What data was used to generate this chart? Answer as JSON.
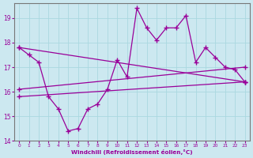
{
  "xlabel": "Windchill (Refroidissement éolien,°C)",
  "background_color": "#cce8f0",
  "line_color": "#990099",
  "xlim": [
    -0.5,
    23.5
  ],
  "ylim": [
    14.0,
    19.6
  ],
  "yticks": [
    14,
    15,
    16,
    17,
    18,
    19
  ],
  "xticks": [
    0,
    1,
    2,
    3,
    4,
    5,
    6,
    7,
    8,
    9,
    10,
    11,
    12,
    13,
    14,
    15,
    16,
    17,
    18,
    19,
    20,
    21,
    22,
    23
  ],
  "main_x": [
    0,
    1,
    2,
    3,
    4,
    5,
    6,
    7,
    8,
    9,
    10,
    11,
    12,
    13,
    14,
    15,
    16,
    17,
    18,
    19,
    20,
    21,
    22,
    23
  ],
  "main_y": [
    17.8,
    17.5,
    17.2,
    15.8,
    15.3,
    14.4,
    14.5,
    15.3,
    15.5,
    16.1,
    17.3,
    16.6,
    19.4,
    18.6,
    18.1,
    18.6,
    18.6,
    19.1,
    17.2,
    17.8,
    17.4,
    17.0,
    16.9,
    16.4
  ],
  "line1_x": [
    0,
    23
  ],
  "line1_y": [
    17.8,
    16.4
  ],
  "line2_x": [
    0,
    23
  ],
  "line2_y": [
    16.1,
    17.0
  ],
  "line3_x": [
    0,
    23
  ],
  "line3_y": [
    15.8,
    16.4
  ],
  "grid_color": "#aad8e0",
  "spine_color": "#888888"
}
